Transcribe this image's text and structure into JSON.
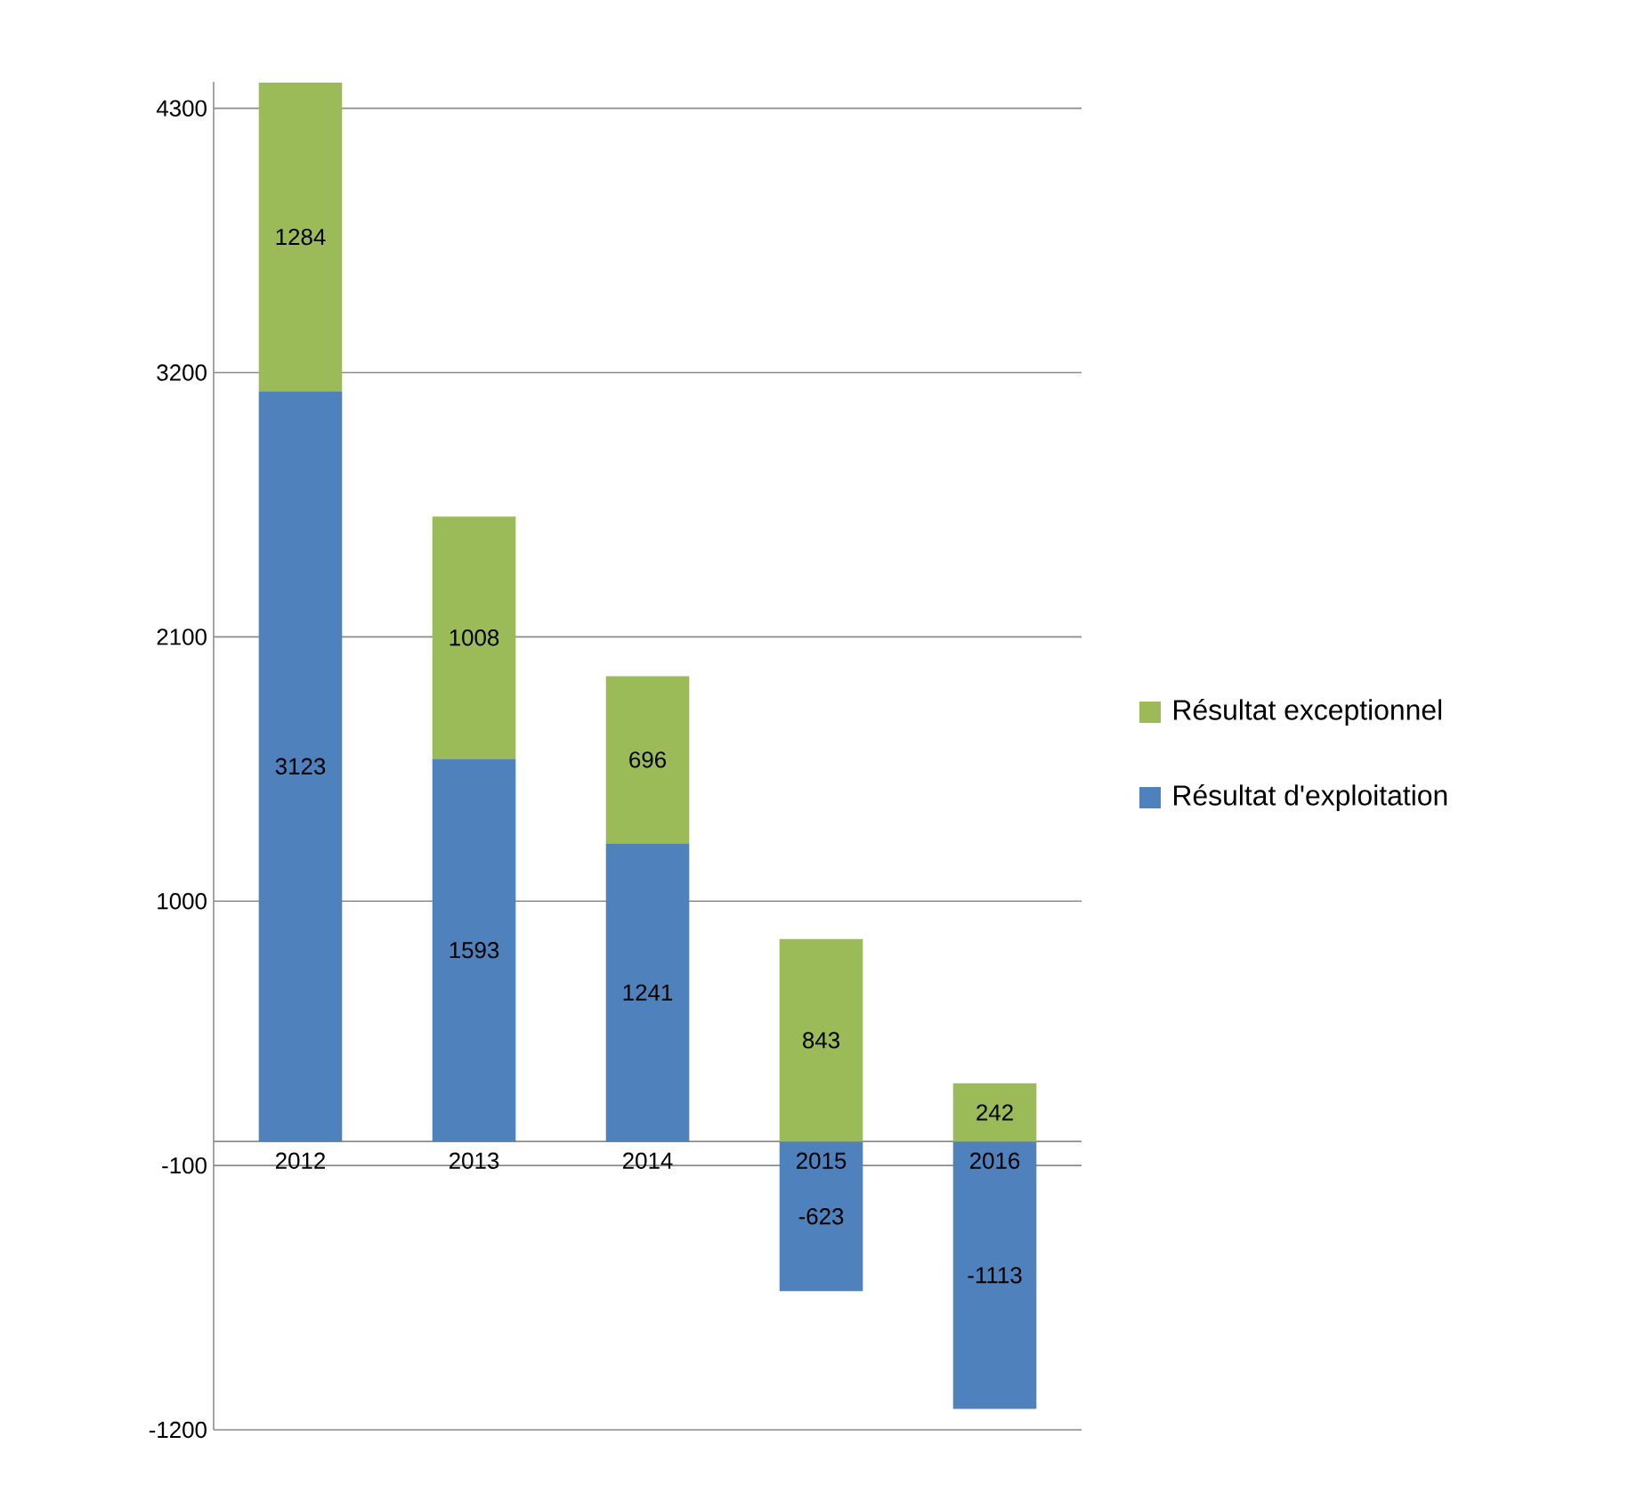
{
  "chart_data": {
    "type": "bar",
    "stacked": true,
    "categories": [
      "2012",
      "2013",
      "2014",
      "2015",
      "2016"
    ],
    "series": [
      {
        "name": "Résultat d'exploitation",
        "color": "#4f81bd",
        "values": [
          3123,
          1593,
          1241,
          -623,
          -1113
        ]
      },
      {
        "name": "Résultat exceptionnel",
        "color": "#9bbb59",
        "values": [
          1284,
          1008,
          696,
          843,
          242
        ]
      }
    ],
    "ylim": [
      -1200,
      4410
    ],
    "yticks": [
      -1200,
      -100,
      1000,
      2100,
      3200,
      4300
    ],
    "grid": "y",
    "legend": "right",
    "data_labels": true
  }
}
